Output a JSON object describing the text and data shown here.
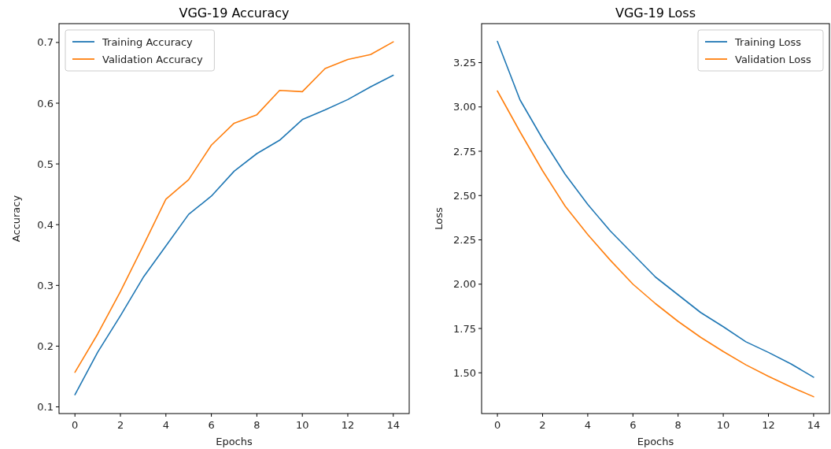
{
  "chart_data": [
    {
      "type": "line",
      "title": "VGG-19 Accuracy",
      "xlabel": "Epochs",
      "ylabel": "Accuracy",
      "x": [
        0,
        1,
        2,
        3,
        4,
        5,
        6,
        7,
        8,
        9,
        10,
        11,
        12,
        13,
        14
      ],
      "xlim": [
        -0.7,
        14.7
      ],
      "xticks": [
        0,
        2,
        4,
        6,
        8,
        10,
        12,
        14
      ],
      "ylim": [
        0.089,
        0.731
      ],
      "yticks": [
        0.1,
        0.2,
        0.3,
        0.4,
        0.5,
        0.6,
        0.7
      ],
      "legend": "top left",
      "grid": false,
      "series": [
        {
          "name": "Training Accuracy",
          "color": "#1f77b4",
          "values": [
            0.12,
            0.19,
            0.25,
            0.313,
            0.365,
            0.417,
            0.447,
            0.488,
            0.517,
            0.539,
            0.573,
            0.589,
            0.606,
            0.627,
            0.646
          ]
        },
        {
          "name": "Validation Accuracy",
          "color": "#ff7f0e",
          "values": [
            0.157,
            0.22,
            0.29,
            0.365,
            0.442,
            0.474,
            0.531,
            0.567,
            0.581,
            0.621,
            0.619,
            0.657,
            0.672,
            0.68,
            0.701
          ]
        }
      ]
    },
    {
      "type": "line",
      "title": "VGG-19 Loss",
      "xlabel": "Epochs",
      "ylabel": "Loss",
      "x": [
        0,
        1,
        2,
        3,
        4,
        5,
        6,
        7,
        8,
        9,
        10,
        11,
        12,
        13,
        14
      ],
      "xlim": [
        -0.7,
        14.7
      ],
      "xticks": [
        0,
        2,
        4,
        6,
        8,
        10,
        12,
        14
      ],
      "ylim": [
        1.27,
        3.47
      ],
      "yticks": [
        {
          "value": 1.5,
          "label": "1.50"
        },
        {
          "value": 1.75,
          "label": "1.75"
        },
        {
          "value": 2,
          "label": "2.00"
        },
        {
          "value": 2.25,
          "label": "2.25"
        },
        {
          "value": 2.5,
          "label": "2.50"
        },
        {
          "value": 2.75,
          "label": "2.75"
        },
        {
          "value": 3,
          "label": "3.00"
        },
        {
          "value": 3.25,
          "label": "3.25"
        }
      ],
      "legend": "top right",
      "grid": false,
      "series": [
        {
          "name": "Training Loss",
          "color": "#1f77b4",
          "values": [
            3.37,
            3.04,
            2.82,
            2.62,
            2.45,
            2.3,
            2.17,
            2.04,
            1.94,
            1.84,
            1.76,
            1.675,
            1.615,
            1.55,
            1.475
          ]
        },
        {
          "name": "Validation Loss",
          "color": "#ff7f0e",
          "values": [
            3.09,
            2.86,
            2.64,
            2.44,
            2.28,
            2.135,
            2.0,
            1.89,
            1.79,
            1.7,
            1.62,
            1.545,
            1.48,
            1.42,
            1.365
          ]
        }
      ]
    }
  ]
}
